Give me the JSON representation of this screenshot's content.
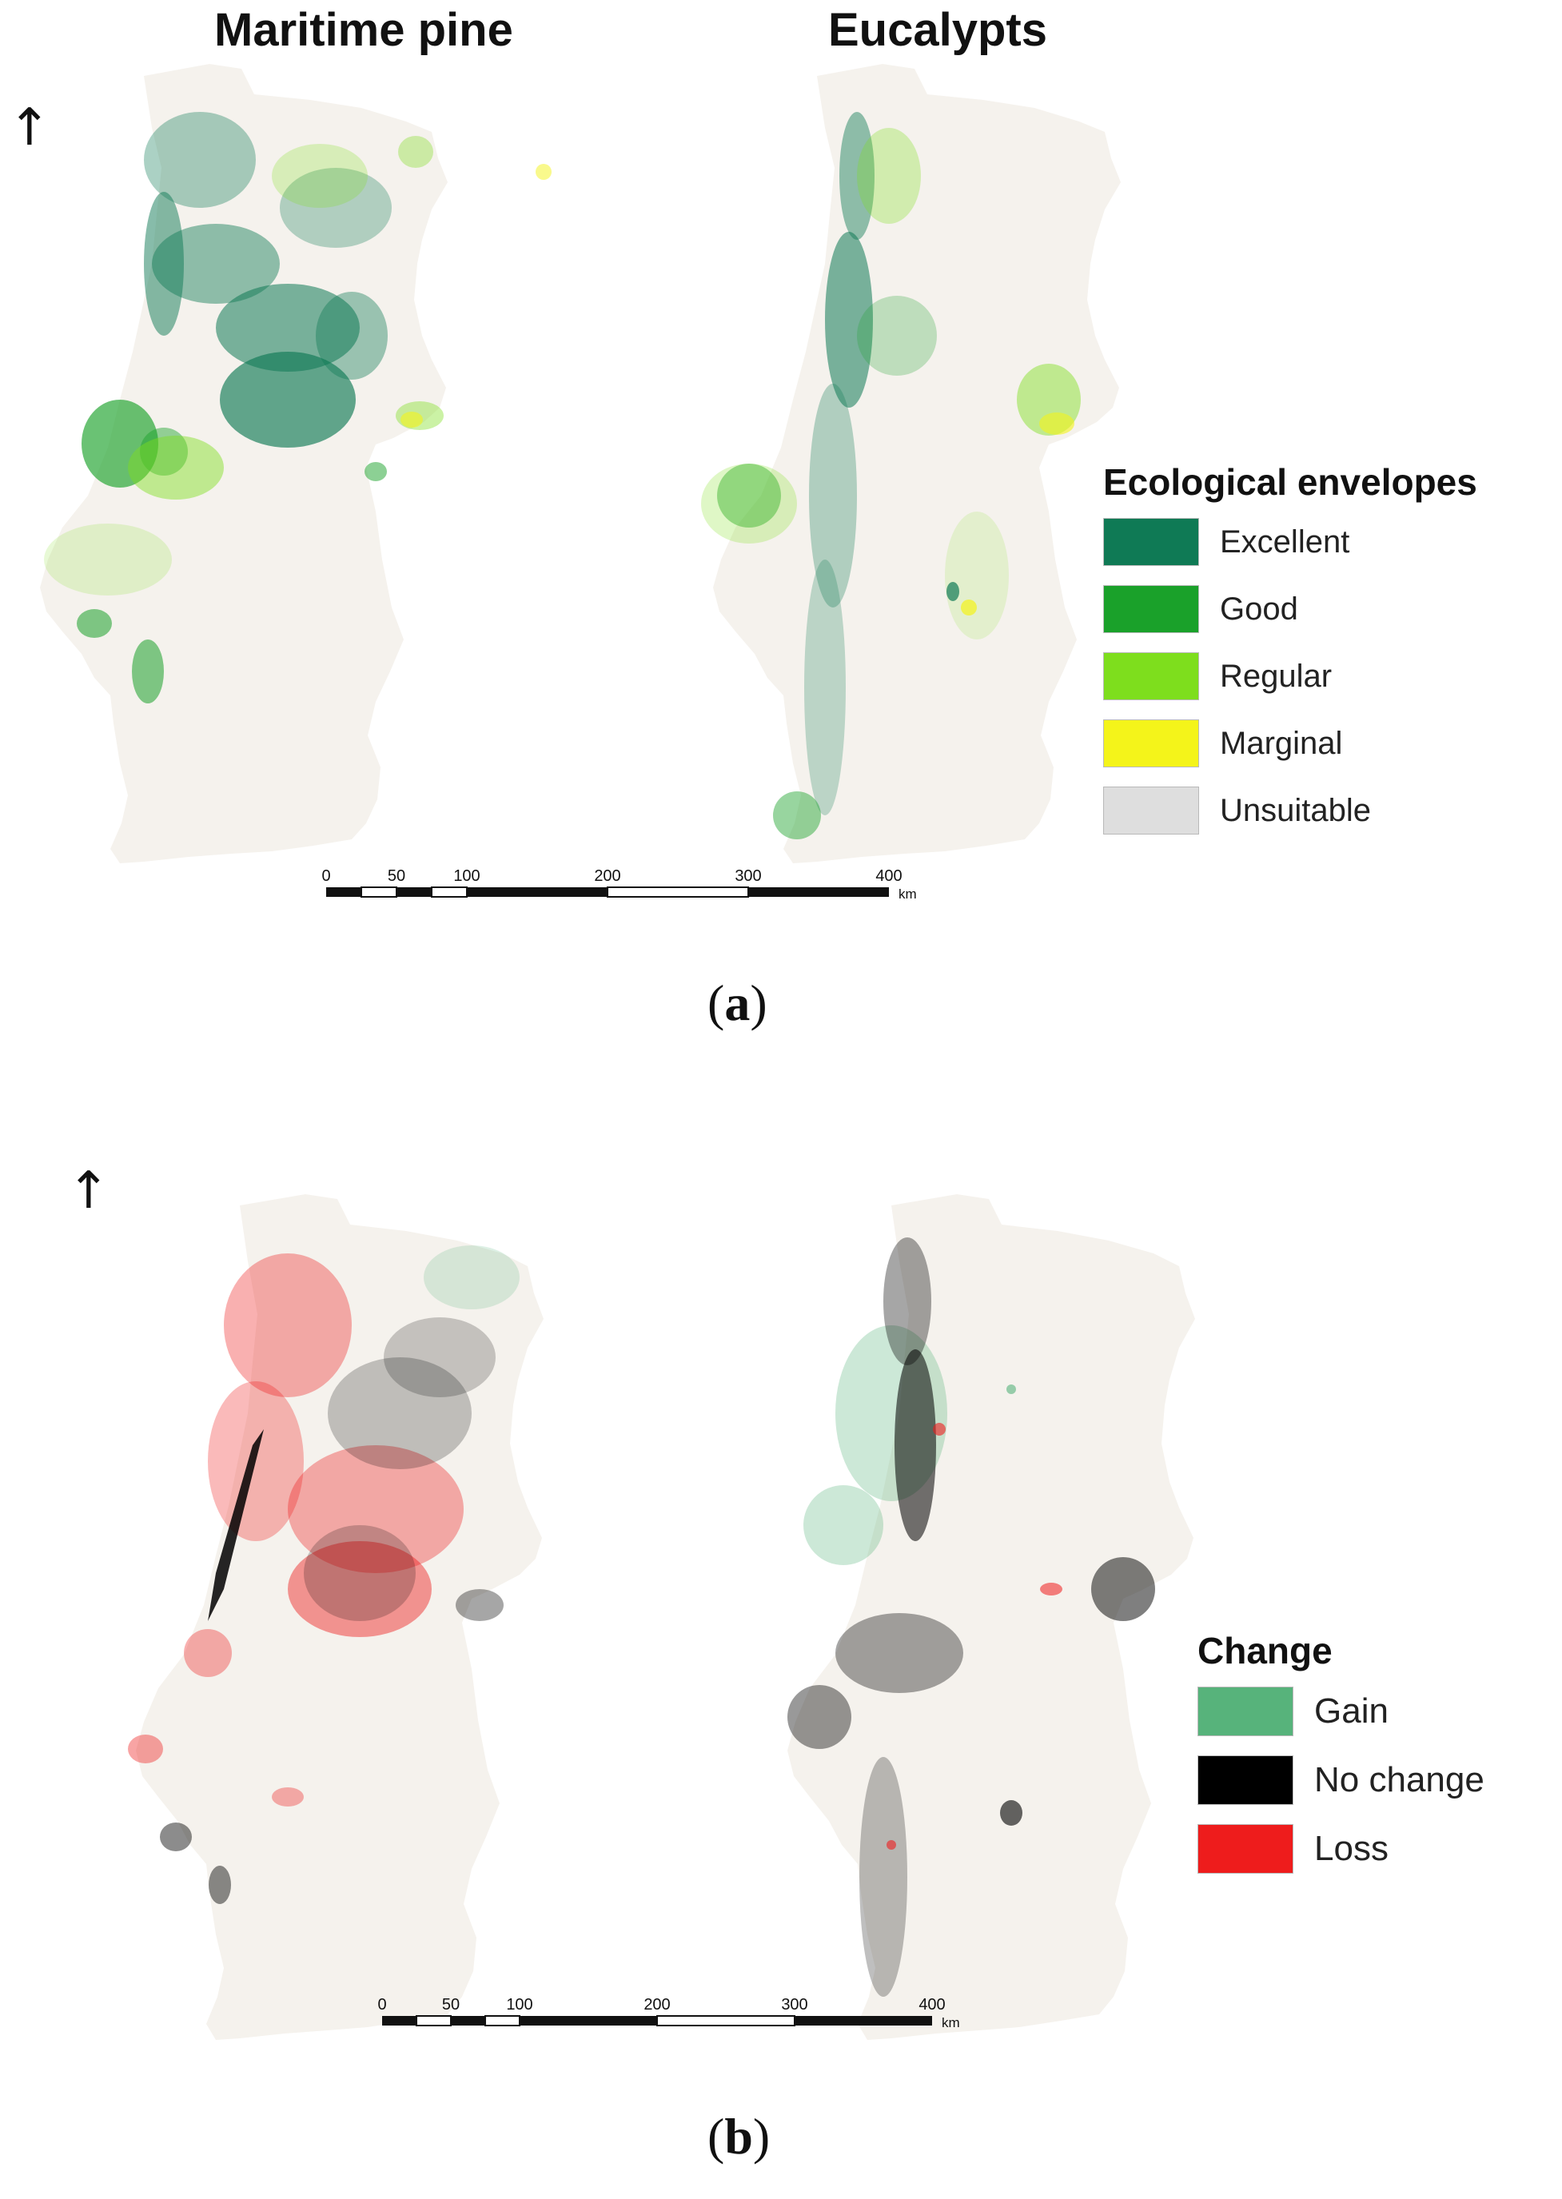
{
  "panel_a": {
    "label": "a",
    "left_map_title": "Maritime pine",
    "right_map_title": "Eucalypts",
    "north_arrow": "↑",
    "legend": {
      "title": "Ecological envelopes",
      "items": [
        {
          "label": "Excellent",
          "color": "#0f7a55"
        },
        {
          "label": "Good",
          "color": "#1aa12a"
        },
        {
          "label": "Regular",
          "color": "#7ede1d"
        },
        {
          "label": "Marginal",
          "color": "#f4f41a"
        },
        {
          "label": "Unsuitable",
          "color": "#dedede"
        }
      ]
    },
    "scale_bar": {
      "ticks": [
        "0",
        "50",
        "100",
        "200",
        "300",
        "400"
      ],
      "unit": "km"
    }
  },
  "panel_b": {
    "label": "b",
    "north_arrow": "↑",
    "legend": {
      "title": "Change",
      "items": [
        {
          "label": "Gain",
          "color": "#57b37b"
        },
        {
          "label": "No change",
          "color": "#000000"
        },
        {
          "label": "Loss",
          "color": "#ee1c1c"
        }
      ]
    },
    "scale_bar": {
      "ticks": [
        "0",
        "50",
        "100",
        "200",
        "300",
        "400"
      ],
      "unit": "km"
    }
  },
  "colors": {
    "land": "#f5f2ed",
    "page": "#ffffff"
  }
}
